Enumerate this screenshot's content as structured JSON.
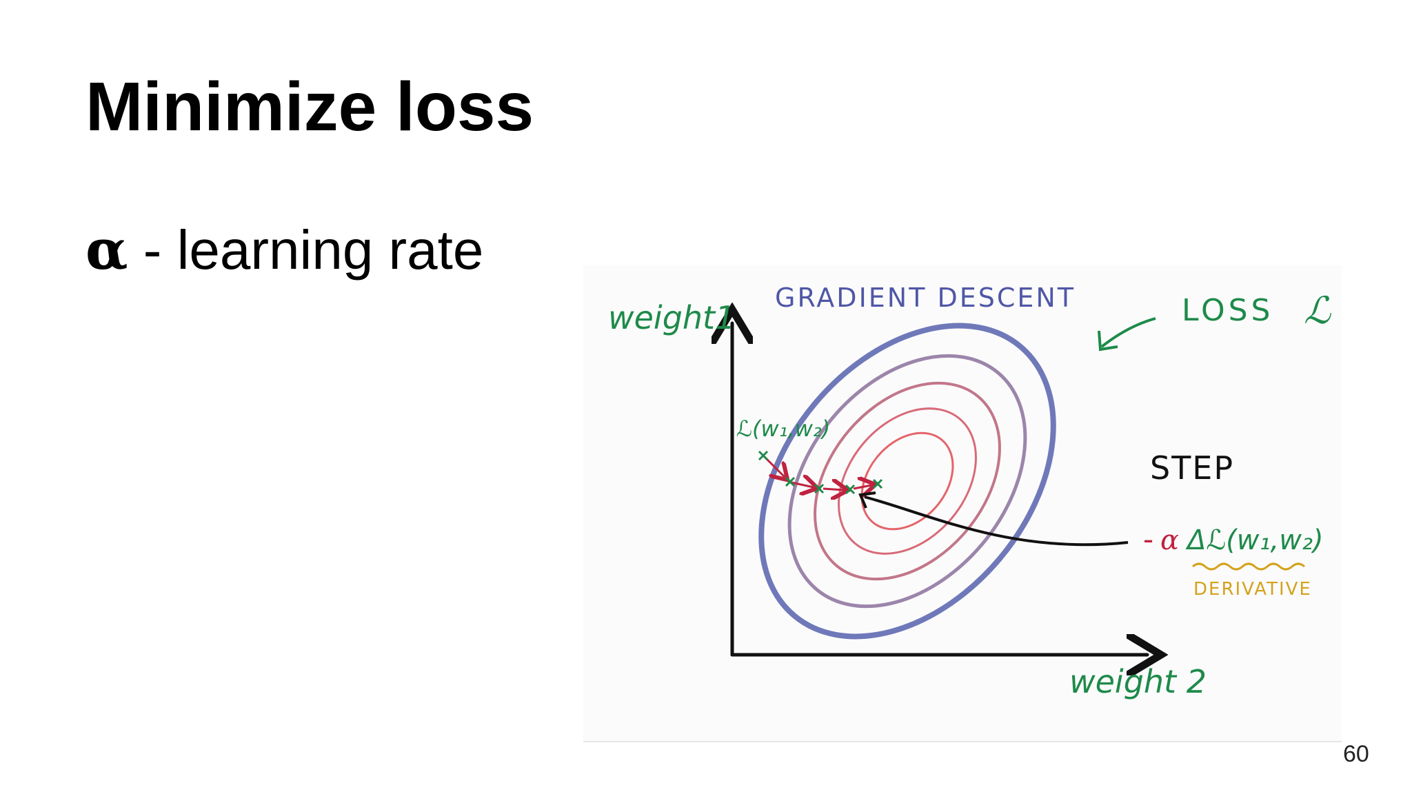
{
  "slide": {
    "title": "Minimize loss",
    "subtitle_symbol": "α",
    "subtitle_text": " - learning rate",
    "page_number": "60"
  },
  "diagram": {
    "title": "GRADIENT DESCENT",
    "y_axis_label": "weight1",
    "x_axis_label": "weight 2",
    "loss_label": "LOSS",
    "loss_symbol": "ℒ",
    "start_label": "ℒ(w₁,w₂)",
    "step_label": "STEP",
    "step_minus": "-",
    "step_alpha": "α",
    "step_formula": "Δℒ(w₁,w₂)",
    "derivative_label": "DERIVATIVE"
  },
  "colors": {
    "title_blue": "#4f57a6",
    "label_green": "#1e8a4a",
    "step_red": "#c0223f",
    "derivative_gold": "#d4a21c",
    "outer_contour": "#6f79b9",
    "inner_contour": "#e4646a",
    "axis": "#111111"
  }
}
